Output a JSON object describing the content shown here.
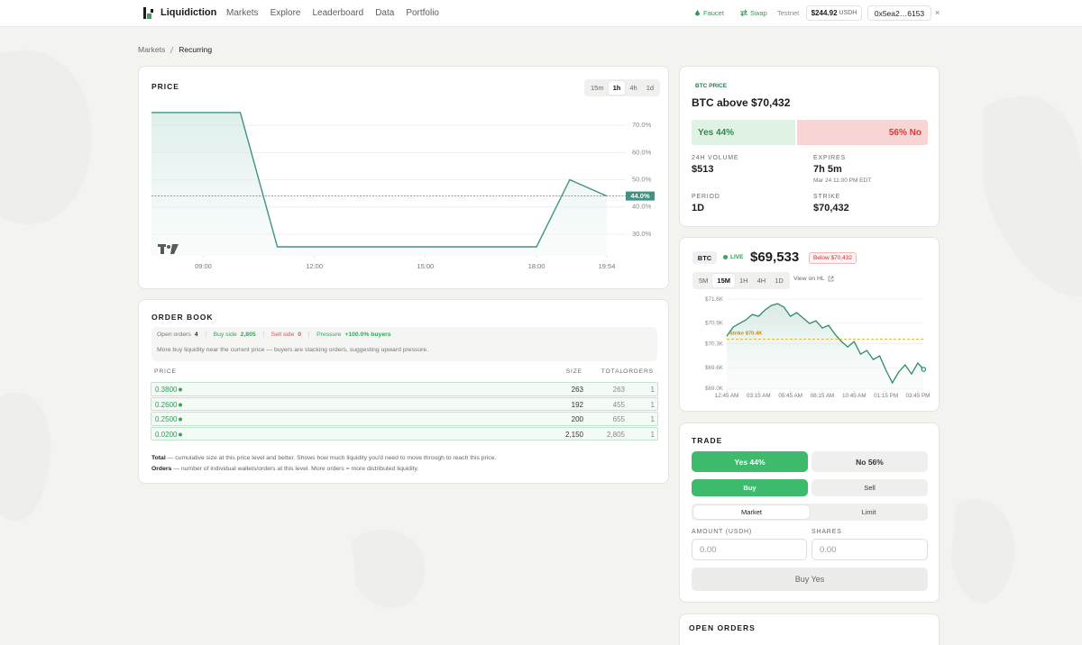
{
  "nav": {
    "brand": "Liquidiction",
    "links": [
      "Markets",
      "Explore",
      "Leaderboard",
      "Data",
      "Portfolio"
    ],
    "faucet": "Faucet",
    "swap": "Swap",
    "network": "Testnet",
    "balance": "$244.92",
    "balance_unit": "USDH",
    "wallet": "0x5ea2…6153",
    "close": "×"
  },
  "breadcrumb": [
    "Markets",
    "Recurring"
  ],
  "price_panel": {
    "title": "PRICE",
    "timeframes": [
      "15m",
      "1h",
      "4h",
      "1d"
    ],
    "active_timeframe": 1
  },
  "chart_data": [
    {
      "type": "line",
      "x": [
        7.6,
        10.0,
        11.0,
        18.0,
        18.9,
        19.9
      ],
      "values": [
        74.7,
        74.7,
        25.3,
        25.3,
        50,
        44
      ],
      "color": "#3f9284",
      "xlim": [
        7.6,
        19.9
      ],
      "xticks": [
        {
          "value": 9,
          "label": "09:00"
        },
        {
          "value": 12,
          "label": "12:00"
        },
        {
          "value": 15,
          "label": "15:00"
        },
        {
          "value": 18,
          "label": "18:00"
        },
        {
          "value": 19.9,
          "label": "19:54"
        }
      ],
      "ylim": [
        22,
        76
      ],
      "yticks": [
        {
          "value": 30,
          "label": "30.0%"
        },
        {
          "value": 40,
          "label": "40.0%"
        },
        {
          "value": 50,
          "label": "50.0%"
        },
        {
          "value": 60,
          "label": "60.0%"
        },
        {
          "value": 70,
          "label": "70.0%"
        }
      ],
      "current": {
        "value": 44,
        "label": "44.0%"
      },
      "grid": true
    },
    {
      "type": "line",
      "x": [
        0.75,
        1.25,
        1.75,
        2.25,
        2.75,
        3.25,
        3.75,
        4.25,
        4.75,
        5.25,
        5.75,
        6.25,
        6.75,
        7.25,
        7.75,
        8.25,
        8.75,
        9.25,
        9.75,
        10.25,
        10.75,
        11.25,
        11.75,
        12.25,
        12.75,
        13.25,
        13.75,
        14.25,
        14.75,
        15.25,
        15.75,
        16.2
      ],
      "values": [
        70524,
        70786,
        70891,
        70996,
        71154,
        71101,
        71285,
        71416,
        71469,
        71364,
        71101,
        71206,
        71049,
        70891,
        70970,
        70760,
        70839,
        70576,
        70366,
        70209,
        70366,
        69999,
        70104,
        69841,
        69946,
        69527,
        69159,
        69474,
        69684,
        69421,
        69737,
        69553
      ],
      "color": "#2e8b6e",
      "xlim": [
        0.75,
        16.2
      ],
      "xticks": [
        {
          "value": 0.75,
          "label": "12:45 AM"
        },
        {
          "value": 3.25,
          "label": "03:15 AM"
        },
        {
          "value": 5.75,
          "label": "05:45 AM"
        },
        {
          "value": 8.25,
          "label": "08:15 AM"
        },
        {
          "value": 10.75,
          "label": "10:45 AM"
        },
        {
          "value": 13.25,
          "label": "01:15 PM"
        },
        {
          "value": 15.75,
          "label": "03:45 PM"
        }
      ],
      "ylim": [
        68950,
        71760
      ],
      "yticks": [
        {
          "value": 69000,
          "label": "$69.0K"
        },
        {
          "value": 69600,
          "label": "$69.6K"
        },
        {
          "value": 70300,
          "label": "$70.3K"
        },
        {
          "value": 70900,
          "label": "$70.9K"
        },
        {
          "value": 71600,
          "label": "$71.6K"
        }
      ],
      "strike": {
        "value": 70432,
        "label": "Strike $70.4K"
      },
      "marker_last": true,
      "grid": true
    }
  ],
  "order_book": {
    "title": "ORDER BOOK",
    "stats": [
      {
        "label": "Open orders",
        "value": "4",
        "tone": "neutral"
      },
      {
        "label": "Buy side",
        "value": "2,805",
        "tone": "buy"
      },
      {
        "label": "Sell side",
        "value": "0",
        "tone": "sell"
      },
      {
        "label": "Pressure",
        "value": "+100.0% buyers",
        "tone": "buy"
      }
    ],
    "summary": "More buy liquidity near the current price — buyers are stacking orders, suggesting upward pressure.",
    "columns": [
      "PRICE",
      "SIZE",
      "TOTAL",
      "ORDERS"
    ],
    "rows": [
      [
        "0.3800",
        "263",
        "263",
        "1"
      ],
      [
        "0.2600",
        "192",
        "455",
        "1"
      ],
      [
        "0.2500",
        "200",
        "655",
        "1"
      ],
      [
        "0.0200",
        "2,150",
        "2,805",
        "1"
      ]
    ],
    "notes": [
      {
        "term": "Total",
        "text": "— cumulative size at this price level and better. Shows how much liquidity you'd need to move through to reach this price."
      },
      {
        "term": "Orders",
        "text": "— number of individual wallets/orders at this level. More orders = more distributed liquidity."
      }
    ]
  },
  "market": {
    "label": "BTC PRICE",
    "title": "BTC above $70,432",
    "yes": {
      "label": "Yes 44%",
      "value": 44
    },
    "no": {
      "label": "56% No",
      "value": 56
    },
    "stats": [
      {
        "label": "24H VOLUME",
        "value": "$513"
      },
      {
        "label": "EXPIRES",
        "value": "7h 5m",
        "detail": "Mar 24 11:00 PM EDT"
      },
      {
        "label": "PERIOD",
        "value": "1D"
      },
      {
        "label": "STRIKE",
        "value": "$70,432"
      }
    ]
  },
  "live": {
    "asset": "BTC",
    "status": "LIVE",
    "price": "$69,533",
    "badge": "Below $70,432",
    "timeframes": [
      "5M",
      "15M",
      "1H",
      "4H",
      "1D"
    ],
    "active_timeframe": 1,
    "link": "View on HL"
  },
  "trade": {
    "title": "TRADE",
    "outcomes": [
      "Yes 44%",
      "No 56%"
    ],
    "sides": [
      "Buy",
      "Sell"
    ],
    "order_types": [
      "Market",
      "Limit"
    ],
    "amount_label": "AMOUNT (USDH)",
    "shares_label": "SHARES",
    "amount_placeholder": "0.00",
    "shares_placeholder": "0.00",
    "submit": "Buy Yes"
  },
  "open_orders": {
    "title": "OPEN ORDERS"
  }
}
